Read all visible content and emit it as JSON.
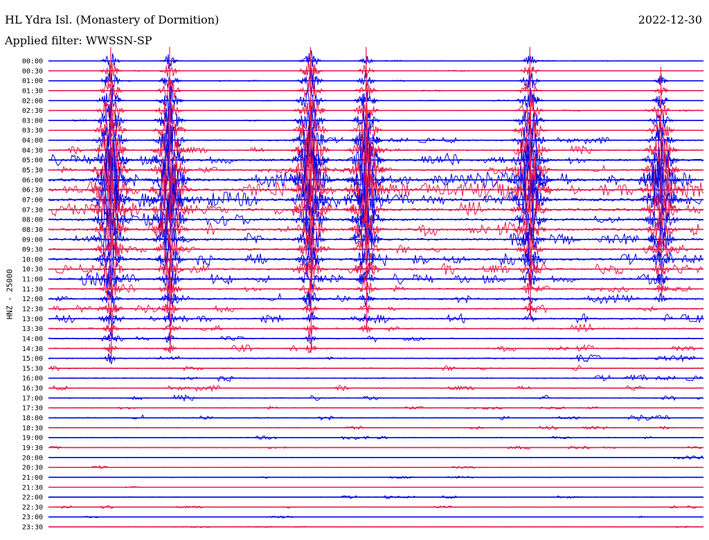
{
  "header": {
    "station": "HL Ydra Isl. (Monastery of Dormition)",
    "date": "2022-12-30",
    "filter": "Applied filter: WWSSN-SP"
  },
  "chart_data": {
    "type": "line",
    "chart_kind": "helicorder seismogram",
    "ylabel": "HNZ - 25000",
    "rows": [
      "00:00",
      "00:30",
      "01:00",
      "01:30",
      "02:00",
      "02:30",
      "03:00",
      "03:30",
      "04:00",
      "04:30",
      "05:00",
      "05:30",
      "06:00",
      "06:30",
      "07:00",
      "07:30",
      "08:00",
      "08:30",
      "09:00",
      "09:30",
      "10:00",
      "10:30",
      "11:00",
      "11:30",
      "12:00",
      "12:30",
      "13:00",
      "13:30",
      "14:00",
      "14:30",
      "15:00",
      "15:30",
      "16:00",
      "16:30",
      "17:00",
      "17:30",
      "18:00",
      "18:30",
      "19:00",
      "19:30",
      "20:00",
      "20:30",
      "21:00",
      "21:30",
      "22:00",
      "22:30",
      "23:00",
      "23:30"
    ],
    "trace_colors": [
      "#0000e6",
      "#e6194b"
    ],
    "noise_level": [
      0.3,
      0.35,
      0.3,
      0.3,
      0.25,
      0.35,
      0.3,
      0.3,
      1.2,
      1.4,
      2.2,
      1.6,
      3.0,
      3.2,
      2.8,
      2.6,
      2.4,
      2.6,
      2.2,
      2.0,
      2.4,
      2.0,
      2.0,
      1.6,
      1.8,
      1.4,
      1.6,
      1.4,
      1.2,
      1.2,
      1.2,
      1.2,
      1.2,
      1.0,
      1.0,
      0.8,
      1.0,
      0.8,
      0.7,
      0.6,
      0.6,
      0.6,
      0.6,
      0.4,
      0.6,
      0.5,
      0.4,
      0.4
    ],
    "events": [
      {
        "time_fraction": 0.095,
        "start_row": 0,
        "end_row": 30,
        "peak_row": 13
      },
      {
        "time_fraction": 0.185,
        "start_row": 0,
        "end_row": 29,
        "peak_row": 13
      },
      {
        "time_fraction": 0.4,
        "start_row": 0,
        "end_row": 29,
        "peak_row": 12
      },
      {
        "time_fraction": 0.485,
        "start_row": 0,
        "end_row": 27,
        "peak_row": 13
      },
      {
        "time_fraction": 0.735,
        "start_row": 0,
        "end_row": 26,
        "peak_row": 12
      },
      {
        "time_fraction": 0.935,
        "start_row": 2,
        "end_row": 24,
        "peak_row": 13
      }
    ],
    "grid": false
  }
}
